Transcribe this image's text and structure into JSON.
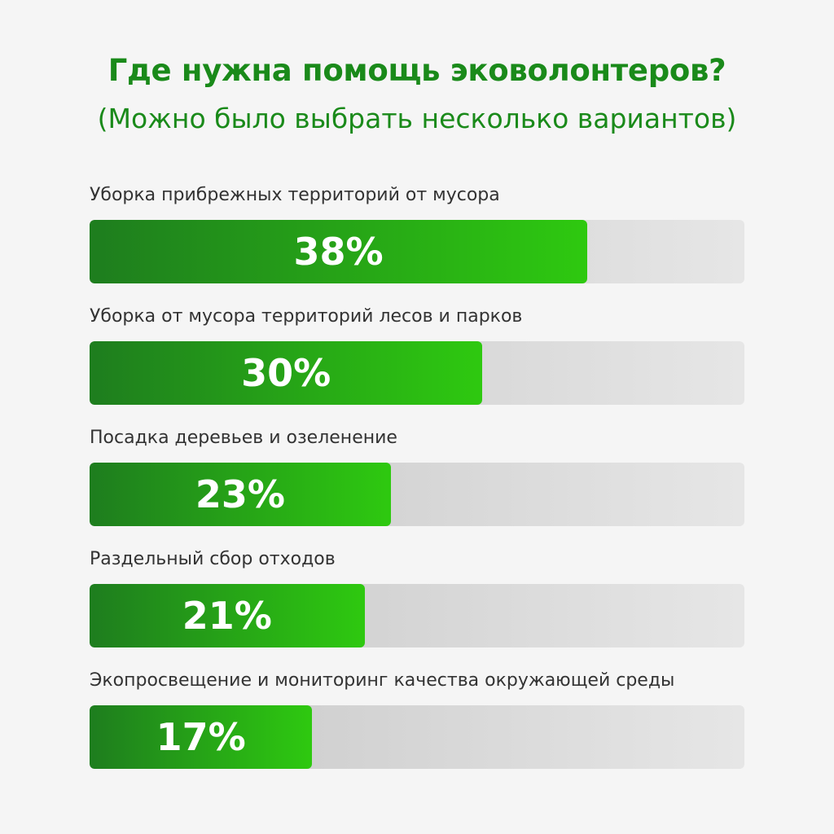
{
  "chart_data": {
    "type": "bar",
    "orientation": "horizontal",
    "title": "Где нужна помощь эковолонтеров?",
    "subtitle": "(Можно было выбрать несколько вариантов)",
    "unit": "%",
    "xlim": [
      0,
      100
    ],
    "grid": false,
    "categories": [
      "Уборка прибрежных территорий от мусора",
      "Уборка от мусора территорий лесов и парков",
      "Посадка деревьев и озеленение",
      "Раздельный сбор отходов",
      "Экопросвещение и мониторинг качества окружающей среды"
    ],
    "values": [
      38,
      30,
      23,
      21,
      17
    ],
    "value_labels": [
      "38%",
      "30%",
      "23%",
      "21%",
      "17%"
    ],
    "colors": {
      "title": "#1a8a1a",
      "bar_dark": "#1e7d1e",
      "bar_light": "#2ec910",
      "track_dark": "#c6c6c6",
      "track_light": "#e6e6e6",
      "label": "#333333",
      "background": "#f5f5f5"
    }
  }
}
